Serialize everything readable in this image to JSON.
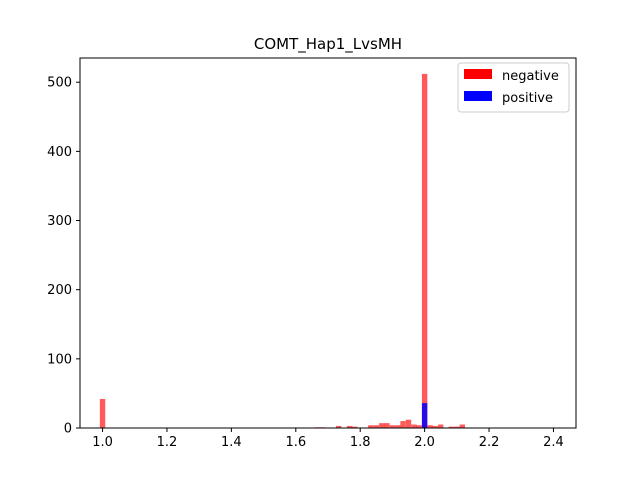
{
  "chart_data": {
    "type": "bar",
    "title": "COMT_Hap1_LvsMH",
    "xlabel": "",
    "ylabel": "",
    "xlim": [
      0.93,
      2.47
    ],
    "ylim": [
      0,
      535
    ],
    "xticks": [
      "1.0",
      "1.2",
      "1.4",
      "1.6",
      "1.8",
      "2.0",
      "2.2",
      "2.4"
    ],
    "yticks": [
      "0",
      "100",
      "200",
      "300",
      "400",
      "500"
    ],
    "bin_width": 0.0167,
    "grid": false,
    "legend_position": "top-right",
    "series": [
      {
        "name": "negative",
        "color": "#ff0000",
        "alpha": 0.65,
        "bins": [
          {
            "x": 1.0,
            "count": 42
          },
          {
            "x": 1.667,
            "count": 1
          },
          {
            "x": 1.683,
            "count": 1
          },
          {
            "x": 1.733,
            "count": 3
          },
          {
            "x": 1.767,
            "count": 3
          },
          {
            "x": 1.783,
            "count": 2
          },
          {
            "x": 1.833,
            "count": 4
          },
          {
            "x": 1.85,
            "count": 4
          },
          {
            "x": 1.867,
            "count": 7
          },
          {
            "x": 1.883,
            "count": 7
          },
          {
            "x": 1.9,
            "count": 4
          },
          {
            "x": 1.917,
            "count": 4
          },
          {
            "x": 1.933,
            "count": 10
          },
          {
            "x": 1.95,
            "count": 12
          },
          {
            "x": 1.967,
            "count": 5
          },
          {
            "x": 1.983,
            "count": 4
          },
          {
            "x": 2.0,
            "count": 512
          },
          {
            "x": 2.017,
            "count": 4
          },
          {
            "x": 2.033,
            "count": 3
          },
          {
            "x": 2.05,
            "count": 5
          },
          {
            "x": 2.083,
            "count": 2
          },
          {
            "x": 2.1,
            "count": 2
          },
          {
            "x": 2.117,
            "count": 5
          }
        ]
      },
      {
        "name": "positive",
        "color": "#0000ff",
        "alpha": 0.85,
        "bins": [
          {
            "x": 2.0,
            "count": 36
          }
        ]
      }
    ]
  }
}
